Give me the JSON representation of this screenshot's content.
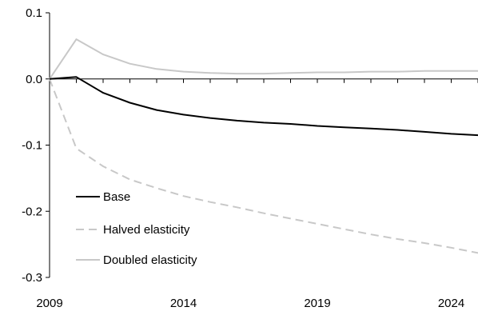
{
  "chart_data": {
    "type": "line",
    "title": "",
    "xlabel": "",
    "ylabel": "",
    "xlim": [
      2009,
      2025
    ],
    "ylim": [
      -0.3,
      0.1
    ],
    "x_ticks": [
      2009,
      2014,
      2019,
      2024
    ],
    "y_ticks": [
      0.1,
      0.0,
      -0.1,
      -0.2,
      -0.3
    ],
    "x_tick_labels": [
      "2009",
      "2014",
      "2019",
      "2024"
    ],
    "y_tick_labels": [
      "0.1",
      "0.0",
      "-0.1",
      "-0.2",
      "-0.3"
    ],
    "grid": false,
    "legend_position": "lower-left",
    "x": [
      2009,
      2010,
      2011,
      2012,
      2013,
      2014,
      2015,
      2016,
      2017,
      2018,
      2019,
      2020,
      2021,
      2022,
      2023,
      2024,
      2025
    ],
    "series": [
      {
        "name": "Base",
        "color": "#000000",
        "dash": "solid",
        "values": [
          0.0,
          0.003,
          -0.021,
          -0.036,
          -0.047,
          -0.054,
          -0.059,
          -0.063,
          -0.066,
          -0.068,
          -0.071,
          -0.073,
          -0.075,
          -0.077,
          -0.08,
          -0.083,
          -0.085
        ]
      },
      {
        "name": "Halved elasticity",
        "color": "#c8c8c8",
        "dash": "dashed",
        "values": [
          0.0,
          -0.105,
          -0.132,
          -0.152,
          -0.165,
          -0.177,
          -0.186,
          -0.194,
          -0.203,
          -0.211,
          -0.219,
          -0.227,
          -0.235,
          -0.242,
          -0.248,
          -0.255,
          -0.263
        ]
      },
      {
        "name": "Doubled elasticity",
        "color": "#c8c8c8",
        "dash": "solid",
        "values": [
          0.0,
          0.06,
          0.037,
          0.023,
          0.015,
          0.011,
          0.009,
          0.008,
          0.008,
          0.009,
          0.01,
          0.01,
          0.011,
          0.011,
          0.012,
          0.012,
          0.012
        ]
      }
    ]
  }
}
